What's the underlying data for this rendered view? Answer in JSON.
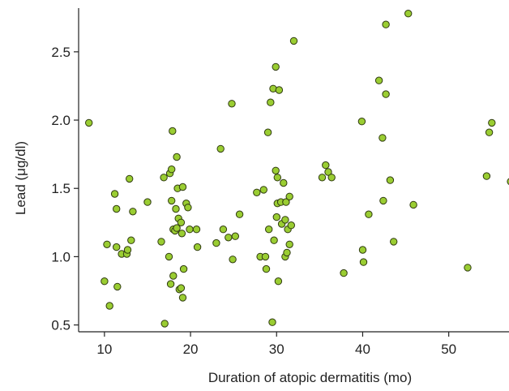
{
  "chart_data": {
    "type": "scatter",
    "title": "",
    "xlabel": "Duration of atopic dermatitis (mo)",
    "ylabel": "Lead (μg/dl)",
    "xlim": [
      7,
      57
    ],
    "ylim": [
      0.45,
      2.82
    ],
    "xticks": [
      10,
      20,
      30,
      40,
      50
    ],
    "yticks": [
      0.5,
      1.0,
      1.5,
      2.0,
      2.5
    ],
    "ytick_labels": [
      "0.5",
      "1.0",
      "1.5",
      "2.0",
      "2.5"
    ],
    "grid": false,
    "legend": "none",
    "marker_fill": "#9acd32",
    "marker_edge": "#2f3a10",
    "series": [
      {
        "points": [
          [
            8.2,
            1.98
          ],
          [
            10.0,
            0.82
          ],
          [
            10.3,
            1.09
          ],
          [
            10.6,
            0.64
          ],
          [
            11.2,
            1.46
          ],
          [
            11.4,
            1.35
          ],
          [
            11.4,
            1.07
          ],
          [
            11.5,
            0.78
          ],
          [
            12.0,
            1.02
          ],
          [
            12.6,
            1.02
          ],
          [
            12.7,
            1.05
          ],
          [
            12.9,
            1.57
          ],
          [
            13.1,
            1.12
          ],
          [
            13.3,
            1.33
          ],
          [
            15.0,
            1.4
          ],
          [
            16.6,
            1.11
          ],
          [
            16.9,
            1.58
          ],
          [
            17.0,
            0.51
          ],
          [
            17.5,
            1.0
          ],
          [
            17.6,
            1.61
          ],
          [
            17.7,
            0.8
          ],
          [
            17.8,
            1.64
          ],
          [
            17.8,
            1.41
          ],
          [
            17.9,
            1.92
          ],
          [
            18.0,
            1.2
          ],
          [
            18.0,
            0.86
          ],
          [
            18.2,
            1.19
          ],
          [
            18.3,
            1.35
          ],
          [
            18.4,
            1.73
          ],
          [
            18.4,
            1.21
          ],
          [
            18.5,
            1.5
          ],
          [
            18.6,
            1.28
          ],
          [
            18.7,
            0.76
          ],
          [
            18.9,
            1.25
          ],
          [
            18.9,
            0.77
          ],
          [
            19.0,
            1.17
          ],
          [
            19.1,
            0.7
          ],
          [
            19.1,
            1.51
          ],
          [
            19.2,
            0.91
          ],
          [
            19.5,
            1.39
          ],
          [
            19.7,
            1.36
          ],
          [
            19.9,
            1.2
          ],
          [
            20.7,
            1.2
          ],
          [
            20.8,
            1.07
          ],
          [
            23.0,
            1.1
          ],
          [
            23.5,
            1.79
          ],
          [
            23.8,
            1.2
          ],
          [
            24.4,
            1.14
          ],
          [
            24.8,
            2.12
          ],
          [
            24.9,
            0.98
          ],
          [
            25.2,
            1.15
          ],
          [
            25.7,
            1.31
          ],
          [
            27.7,
            1.47
          ],
          [
            28.1,
            1.0
          ],
          [
            28.5,
            1.49
          ],
          [
            28.7,
            1.0
          ],
          [
            28.8,
            0.91
          ],
          [
            29.0,
            1.91
          ],
          [
            29.1,
            1.2
          ],
          [
            29.3,
            2.13
          ],
          [
            29.5,
            0.52
          ],
          [
            29.6,
            2.23
          ],
          [
            29.7,
            1.12
          ],
          [
            29.9,
            2.39
          ],
          [
            29.9,
            1.63
          ],
          [
            30.0,
            1.29
          ],
          [
            30.1,
            1.58
          ],
          [
            30.1,
            1.39
          ],
          [
            30.2,
            0.82
          ],
          [
            30.3,
            2.22
          ],
          [
            30.5,
            1.4
          ],
          [
            30.6,
            1.24
          ],
          [
            30.8,
            1.54
          ],
          [
            31.0,
            1.0
          ],
          [
            31.0,
            1.27
          ],
          [
            31.1,
            1.4
          ],
          [
            31.2,
            1.03
          ],
          [
            31.3,
            1.2
          ],
          [
            31.5,
            1.44
          ],
          [
            31.5,
            1.09
          ],
          [
            31.7,
            1.23
          ],
          [
            32.0,
            2.58
          ],
          [
            35.3,
            1.58
          ],
          [
            35.7,
            1.67
          ],
          [
            36.0,
            1.62
          ],
          [
            36.4,
            1.58
          ],
          [
            37.8,
            0.88
          ],
          [
            39.9,
            1.99
          ],
          [
            40.0,
            1.05
          ],
          [
            40.1,
            0.96
          ],
          [
            40.7,
            1.31
          ],
          [
            41.9,
            2.29
          ],
          [
            42.3,
            1.87
          ],
          [
            42.4,
            1.41
          ],
          [
            42.7,
            2.7
          ],
          [
            42.7,
            2.19
          ],
          [
            43.2,
            1.56
          ],
          [
            43.6,
            1.11
          ],
          [
            45.3,
            2.78
          ],
          [
            45.9,
            1.38
          ],
          [
            52.2,
            0.92
          ],
          [
            54.4,
            1.59
          ],
          [
            54.7,
            1.91
          ],
          [
            55.0,
            1.98
          ],
          [
            57.2,
            1.55
          ]
        ]
      }
    ]
  }
}
